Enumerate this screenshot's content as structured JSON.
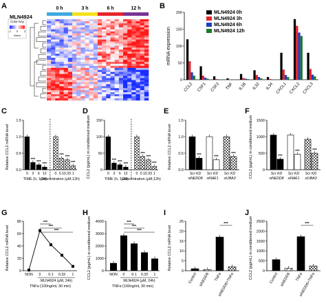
{
  "figure": {
    "panel_letters": [
      "A",
      "B",
      "C",
      "D",
      "E",
      "F",
      "G",
      "H",
      "I",
      "J"
    ]
  },
  "colors": {
    "bar_black": "#000000",
    "heat_high": "#ff1a1a",
    "heat_mid": "#ffffff",
    "heat_low": "#1a2dff",
    "band_0h": "#3fa9e0",
    "band_3h": "#f5e11b",
    "band_6h": "#e8262b",
    "band_12h": "#7b3294",
    "series_0h": "#000000",
    "series_3h": "#e3242b",
    "series_6h": "#1f3fbf",
    "series_12h": "#1b7a2d"
  },
  "chart_data": [
    {
      "panel": "A",
      "type": "heatmap",
      "drug": "MLN4924",
      "columns": [
        "0 h",
        "3 h",
        "6 h",
        "12 h"
      ],
      "color_key_title": "Color Key",
      "color_key_ticks": [
        "-2",
        "0",
        "2"
      ],
      "color_key_label": "Value"
    },
    {
      "panel": "B",
      "type": "bar",
      "ylabel": "mRNA expression",
      "ylim": [
        0,
        200
      ],
      "yticks": [
        "0",
        "50",
        "100",
        "150",
        "200"
      ],
      "categories": [
        "CCL2",
        "CSF1",
        "CSF2",
        "TNF",
        "IL1B",
        "IL32",
        "IL34",
        "CXCL1",
        "CXCL2",
        "CXCL3"
      ],
      "series": [
        {
          "name": "MLN4924 0h",
          "values": [
            120,
            40,
            10,
            4,
            17,
            28,
            8,
            80,
            180,
            80
          ]
        },
        {
          "name": "MLN4924 3h",
          "values": [
            55,
            12,
            2,
            1,
            5,
            14,
            2,
            30,
            160,
            32
          ]
        },
        {
          "name": "MLN4924 6h",
          "values": [
            22,
            6,
            1,
            1,
            3,
            8,
            1,
            14,
            140,
            15
          ]
        },
        {
          "name": "MLN4924 12h",
          "values": [
            12,
            3,
            1,
            1,
            2,
            4,
            1,
            8,
            130,
            10
          ]
        }
      ]
    },
    {
      "panel": "C",
      "type": "bar",
      "ylabel": "Relative CCL2 mRNA level",
      "ylim": [
        0,
        1.5
      ],
      "yticks": [
        "0.0",
        "0.5",
        "1.0",
        "1.5"
      ],
      "categories": [
        "0",
        "3",
        "6",
        "12",
        "0",
        "0.1",
        "0.33",
        "1"
      ],
      "values": [
        1.0,
        0.22,
        0.15,
        0.08,
        1.0,
        0.35,
        0.3,
        0.12
      ],
      "sig": [
        "",
        "***",
        "***",
        "***",
        "",
        "***",
        "***",
        "***"
      ],
      "group_labels": [
        "TIME (h, 1μM)",
        "Concentration (μM,12h)"
      ]
    },
    {
      "panel": "D",
      "type": "bar",
      "ylabel": "CCL2 (pg/mL) in conditioned medium",
      "ylim": [
        0,
        150
      ],
      "yticks": [
        "0",
        "50",
        "100",
        "150"
      ],
      "categories": [
        "0",
        "3",
        "6",
        "12",
        "0",
        "0.1",
        "0.33",
        "1"
      ],
      "values": [
        100,
        20,
        15,
        8,
        100,
        40,
        30,
        10
      ],
      "sig": [
        "",
        "***",
        "***",
        "***",
        "",
        "***",
        "***",
        "***"
      ],
      "group_labels": [
        "TIME (h, 1μM)",
        "Concentration (μM,12h)"
      ]
    },
    {
      "panel": "E",
      "type": "bar",
      "ylabel": "Relative CCL2 mRNA level",
      "ylim": [
        0,
        1.5
      ],
      "yticks": [
        "0.0",
        "0.5",
        "1.0",
        "1.5"
      ],
      "values": [
        1.0,
        0.35,
        1.0,
        0.3,
        1.0,
        0.4
      ],
      "sig": [
        "",
        "***",
        "",
        "***",
        "",
        "***"
      ],
      "group_labels": [
        {
          "top": "Scr KD",
          "bottom": "siNEDD8"
        },
        {
          "top": "Scr KD",
          "bottom": "siNAE1"
        },
        {
          "top": "Scr KD",
          "bottom": "siUBA3"
        }
      ]
    },
    {
      "panel": "F",
      "type": "bar",
      "ylabel": "CCL2 (pg/mL) in conditioned medium",
      "ylim": [
        0,
        1500
      ],
      "yticks": [
        "0",
        "500",
        "1000",
        "1500"
      ],
      "values": [
        1050,
        320,
        1050,
        470,
        920,
        500
      ],
      "sig": [
        "",
        "***",
        "",
        "***",
        "",
        "***"
      ],
      "group_labels": [
        {
          "top": "Scr KD",
          "bottom": "siNEDD8"
        },
        {
          "top": "Scr KD",
          "bottom": "siNAE1"
        },
        {
          "top": "Scr KD",
          "bottom": "siUBA3"
        }
      ]
    },
    {
      "panel": "G",
      "type": "line",
      "ylabel": "Relative CCL2 mRNA level",
      "ylim": [
        0,
        80
      ],
      "yticks": [
        "0",
        "20",
        "40",
        "60",
        "80"
      ],
      "categories": [
        "NON",
        "0",
        "0.1",
        "0.33",
        "1"
      ],
      "values": [
        1,
        65,
        42,
        25,
        7
      ],
      "sig": [
        "***",
        "***",
        "***"
      ],
      "subtitle": "MLN4924 (μM, 24h)",
      "xlabel": "TNFα (100ng/ml, 30 min)"
    },
    {
      "panel": "H",
      "type": "bar",
      "ylabel": "CCL2 (pg/mL) in conditioned medium",
      "ylim": [
        0,
        4000
      ],
      "yticks": [
        "0",
        "1000",
        "2000",
        "3000",
        "4000"
      ],
      "categories": [
        "NON",
        "0",
        "0.1",
        "0.33",
        "1"
      ],
      "values": [
        620,
        2850,
        2200,
        1480,
        980
      ],
      "sig": [
        "***",
        "***",
        "***"
      ],
      "subtitle": "MLN4924 (μM, 24h)",
      "xlabel": "TNFα (100ng/ml, 30 min)"
    },
    {
      "panel": "I",
      "type": "bar",
      "ylabel": "Relative CCL2 mRNA level",
      "ylim": [
        0,
        25
      ],
      "yticks": [
        "0",
        "5",
        "10",
        "15",
        "20",
        "25"
      ],
      "categories": [
        "Control",
        "siNEDD8",
        "TNFα",
        "siNEDD8+TNFα"
      ],
      "values": [
        1.0,
        0.6,
        17.0,
        2.0
      ],
      "sig": [
        "***"
      ]
    },
    {
      "panel": "J",
      "type": "bar",
      "ylabel": "CCL2 (pg/mL) in conditioned medium",
      "ylim": [
        0,
        2500
      ],
      "yticks": [
        "0",
        "500",
        "1000",
        "1500",
        "2000",
        "2500"
      ],
      "categories": [
        "Control",
        "siNEDD8",
        "TNFα",
        "siNEDD8+TNFα"
      ],
      "values": [
        560,
        130,
        1720,
        240
      ],
      "sig": [
        "***"
      ]
    }
  ]
}
